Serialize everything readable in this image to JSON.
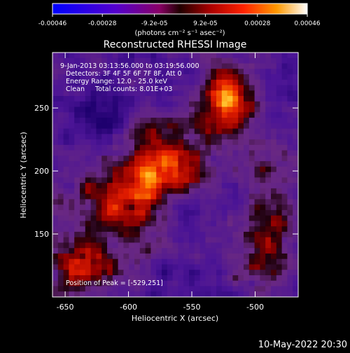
{
  "colorbar": {
    "tick_labels": [
      "-0.00046",
      "-0.00028",
      "-9.2e-05",
      "9.2e-05",
      "0.00028",
      "0.00046"
    ],
    "units_label": "(photons cm⁻² s⁻¹ asec⁻²)",
    "range": [
      -0.00046,
      0.00046
    ]
  },
  "chart_data": {
    "type": "heatmap",
    "title": "Reconstructed RHESSI Image",
    "xlabel": "Heliocentric X (arcsec)",
    "ylabel": "Heliocentric Y (arcsec)",
    "xlim": [
      -660,
      -466
    ],
    "ylim": [
      100,
      294
    ],
    "x_ticks": [
      -650,
      -600,
      -550,
      -500
    ],
    "y_ticks": [
      150,
      200,
      250
    ],
    "grid": false,
    "peak_position": [
      -529,
      251
    ],
    "annotations": [
      "9-Jan-2013 03:13:56.000 to 03:19:56.000",
      "Detectors: 3F 4F 5F 6F 7F 8F, Att 0",
      "Energy Range: 12.0 - 25.0 keV",
      "Clean     Total counts: 8.01E+03"
    ],
    "peak_label": "Position of Peak = [-529,251]",
    "timestamp": "10-May-2022 20:30"
  }
}
